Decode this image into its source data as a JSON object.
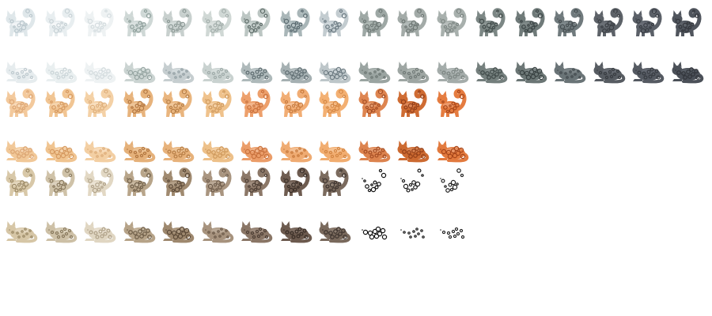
{
  "sprite_sheet": {
    "background": "#ffffff",
    "rows": [
      {
        "pose": "standing",
        "colors": [
          {
            "base": "#dfe7ea",
            "spot": "#b9c6cc",
            "edge": "#ffffff"
          },
          {
            "base": "#e8eef0",
            "spot": "#c8d2d6",
            "edge": "#ffffff"
          },
          {
            "base": "#eef2f3",
            "spot": "#d4dcdf",
            "edge": "#ffffff"
          },
          {
            "base": "#cfd8d6",
            "spot": "#8fa09c",
            "edge": "#e3eae9"
          },
          {
            "base": "#c8d0ce",
            "spot": "#8c9996",
            "edge": "#dde3e2"
          },
          {
            "base": "#d0d8d5",
            "spot": "#a3aeab",
            "edge": "#e2e8e6"
          },
          {
            "base": "#bcc6c3",
            "spot": "#5f6d6a",
            "edge": "#d6dedc"
          },
          {
            "base": "#a9b6b8",
            "spot": "#5a6a70",
            "edge": "#c5d0d2"
          },
          {
            "base": "#c3ccd0",
            "spot": "#6b7a82",
            "edge": "#dbe2e5"
          },
          {
            "base": "#9ea8a5",
            "spot": "#6e7875",
            "edge": "#bcc4c1"
          },
          {
            "base": "#a3aba8",
            "spot": "#6f7875",
            "edge": "#c0c7c4"
          },
          {
            "base": "#a8b0ad",
            "spot": "#7d8683",
            "edge": "#c4cbc8"
          },
          {
            "base": "#7c8785",
            "spot": "#404a49",
            "edge": "#9aa4a2"
          },
          {
            "base": "#6f7a79",
            "spot": "#3c4546",
            "edge": "#8e9897"
          },
          {
            "base": "#707a7d",
            "spot": "#454d50",
            "edge": "#8d9699"
          },
          {
            "base": "#5d6268",
            "spot": "#3b3f44",
            "edge": "#777c82"
          },
          {
            "base": "#5b6068",
            "spot": "#393d44",
            "edge": "#747981"
          },
          {
            "base": "#50555d",
            "spot": "#33363c",
            "edge": "#6a6f77"
          }
        ]
      },
      {
        "pose": "crouching",
        "colors": [
          {
            "base": "#e6ecee",
            "spot": "#bfcacf",
            "edge": "#ffffff"
          },
          {
            "base": "#e9eff0",
            "spot": "#cad4d7",
            "edge": "#ffffff"
          },
          {
            "base": "#eef2f3",
            "spot": "#d2dadd",
            "edge": "#ffffff"
          },
          {
            "base": "#cbd4d2",
            "spot": "#97a6a3",
            "edge": "#e0e7e5"
          },
          {
            "base": "#c6ced0",
            "spot": "#93a0a4",
            "edge": "#dde3e5"
          },
          {
            "base": "#c9d2d0",
            "spot": "#a0acaa",
            "edge": "#dfe6e4"
          },
          {
            "base": "#aeb9ba",
            "spot": "#5e6c70",
            "edge": "#cbd4d5"
          },
          {
            "base": "#a5b0b2",
            "spot": "#5d6b70",
            "edge": "#c2ccce"
          },
          {
            "base": "#bdc6c9",
            "spot": "#6f7d84",
            "edge": "#d6dde0"
          },
          {
            "base": "#9aa4a1",
            "spot": "#6c7673",
            "edge": "#b8c0bd"
          },
          {
            "base": "#9ea6a3",
            "spot": "#717a77",
            "edge": "#bcc3c0"
          },
          {
            "base": "#a4acaa",
            "spot": "#7c8582",
            "edge": "#c1c8c6"
          },
          {
            "base": "#747f7d",
            "spot": "#3f4948",
            "edge": "#929c9a"
          },
          {
            "base": "#6b7675",
            "spot": "#3a4343",
            "edge": "#8a9493"
          },
          {
            "base": "#6a7477",
            "spot": "#434b4e",
            "edge": "#879093"
          },
          {
            "base": "#575c62",
            "spot": "#383c41",
            "edge": "#70757b"
          },
          {
            "base": "#555a62",
            "spot": "#373b41",
            "edge": "#6e737b"
          },
          {
            "base": "#4b5058",
            "spot": "#31343a",
            "edge": "#646972"
          }
        ]
      },
      {
        "pose": "standing",
        "colors": [
          {
            "base": "#f3c99c",
            "spot": "#dda674",
            "edge": "#fbe6cd"
          },
          {
            "base": "#f1c593",
            "spot": "#d79b63",
            "edge": "#fae2c5"
          },
          {
            "base": "#f4d1a6",
            "spot": "#dfb07c",
            "edge": "#fbe9d2"
          },
          {
            "base": "#e7b37c",
            "spot": "#b47842",
            "edge": "#f3d2ad"
          },
          {
            "base": "#e9b57e",
            "spot": "#b98048",
            "edge": "#f5d5b0"
          },
          {
            "base": "#efc28c",
            "spot": "#d09a5d",
            "edge": "#f8ddbc"
          },
          {
            "base": "#eda06c",
            "spot": "#cb7440",
            "edge": "#f7c9a8"
          },
          {
            "base": "#f1ad74",
            "spot": "#c97b3e",
            "edge": "#f9d3b3"
          },
          {
            "base": "#f3b073",
            "spot": "#d58846",
            "edge": "#fad6b1"
          },
          {
            "base": "#de8550",
            "spot": "#a64f26",
            "edge": "#efb792"
          },
          {
            "base": "#cf6c33",
            "spot": "#94401a",
            "edge": "#e89d73"
          },
          {
            "base": "#e57c40",
            "spot": "#a9481b",
            "edge": "#f2b08c"
          }
        ]
      },
      {
        "pose": "crouching",
        "colors": [
          {
            "base": "#f1c898",
            "spot": "#dba472",
            "edge": "#fae4ca"
          },
          {
            "base": "#f0c490",
            "spot": "#d69a61",
            "edge": "#f9e0c2"
          },
          {
            "base": "#f3cfa3",
            "spot": "#ddad79",
            "edge": "#fbe7cf"
          },
          {
            "base": "#e5b17a",
            "spot": "#b27640",
            "edge": "#f2d0aa"
          },
          {
            "base": "#e7b27b",
            "spot": "#b77e46",
            "edge": "#f4d3ad"
          },
          {
            "base": "#edc089",
            "spot": "#ce985b",
            "edge": "#f7dbba"
          },
          {
            "base": "#eb9d69",
            "spot": "#c9723e",
            "edge": "#f6c7a5"
          },
          {
            "base": "#efab72",
            "spot": "#c7793c",
            "edge": "#f8d1b0"
          },
          {
            "base": "#f1ad70",
            "spot": "#d38644",
            "edge": "#f9d3ae"
          },
          {
            "base": "#dc834e",
            "spot": "#a44d24",
            "edge": "#eeb48f"
          },
          {
            "base": "#cc6a31",
            "spot": "#923f19",
            "edge": "#e69a70"
          },
          {
            "base": "#e27a3e",
            "spot": "#a7461a",
            "edge": "#f0ad89"
          }
        ]
      },
      {
        "pose": "standing",
        "colors": [
          {
            "base": "#d8c8a8",
            "spot": "#9c8a66",
            "edge": "#eee4d0"
          },
          {
            "base": "#cfc2a8",
            "spot": "#8a7a5e",
            "edge": "#e8dfcd"
          },
          {
            "base": "#e2d8c4",
            "spot": "#b1a38a",
            "edge": "#f2ece0"
          },
          {
            "base": "#b8a58a",
            "spot": "#6e5e48",
            "edge": "#d6c8b3"
          },
          {
            "base": "#a08a70",
            "spot": "#5e4c3a",
            "edge": "#c4b29c"
          },
          {
            "base": "#a99580",
            "spot": "#6d5b4a",
            "edge": "#cbbcaa"
          },
          {
            "base": "#8c7868",
            "spot": "#4f4036",
            "edge": "#b09e90"
          },
          {
            "base": "#6e5c50",
            "spot": "#3a2f28",
            "edge": "#948479"
          },
          {
            "base": "#7b6b5e",
            "spot": "#3f3530",
            "edge": "#a09285"
          },
          {
            "base": "#ffffff",
            "spot": "#111111",
            "edge": "#ffffff"
          },
          {
            "base": "#ffffff",
            "spot": "#1a1a1a",
            "edge": "#ffffff"
          },
          {
            "base": "#ffffff",
            "spot": "#222222",
            "edge": "#ffffff"
          }
        ]
      },
      {
        "pose": "crouching",
        "colors": [
          {
            "base": "#d6c6a6",
            "spot": "#9a8864",
            "edge": "#ece2ce"
          },
          {
            "base": "#cdc0a6",
            "spot": "#88785c",
            "edge": "#e6ddcb"
          },
          {
            "base": "#e0d6c2",
            "spot": "#afa188",
            "edge": "#f0eade"
          },
          {
            "base": "#b6a388",
            "spot": "#6c5c46",
            "edge": "#d4c6b1"
          },
          {
            "base": "#9e886e",
            "spot": "#5c4a38",
            "edge": "#c2b09a"
          },
          {
            "base": "#a7937e",
            "spot": "#6b5948",
            "edge": "#c9baa8"
          },
          {
            "base": "#8a7666",
            "spot": "#4d3e34",
            "edge": "#ae9c8e"
          },
          {
            "base": "#6c5a4e",
            "spot": "#382d26",
            "edge": "#928277"
          },
          {
            "base": "#79695c",
            "spot": "#3d332e",
            "edge": "#9e9083"
          },
          {
            "base": "#ffffff",
            "spot": "#111111",
            "edge": "#ffffff"
          },
          {
            "base": "#ffffff",
            "spot": "#1a1a1a",
            "edge": "#ffffff"
          },
          {
            "base": "#ffffff",
            "spot": "#222222",
            "edge": "#ffffff"
          }
        ]
      }
    ]
  }
}
